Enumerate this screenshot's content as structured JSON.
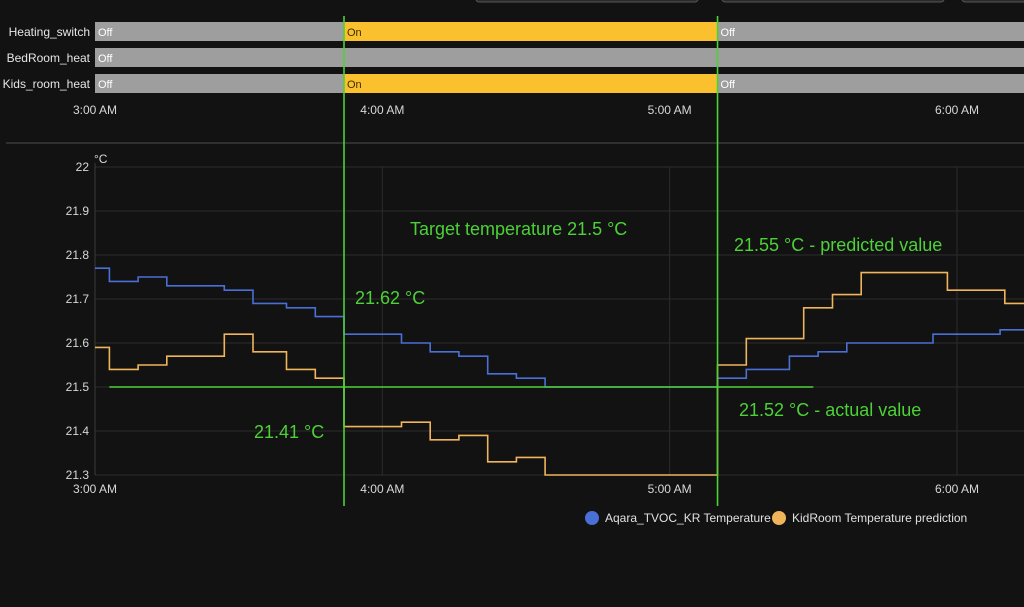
{
  "timeline": {
    "rows": [
      {
        "label": "Heating_switch",
        "segments": [
          {
            "from": "3:00",
            "to": "3:52",
            "state": "Off"
          },
          {
            "from": "3:52",
            "to": "5:10",
            "state": "On"
          },
          {
            "from": "5:10",
            "to": "6:14",
            "state": "Off"
          }
        ]
      },
      {
        "label": "BedRoom_heat",
        "segments": [
          {
            "from": "3:00",
            "to": "6:14",
            "state": "Off"
          }
        ]
      },
      {
        "label": "Kids_room_heat",
        "segments": [
          {
            "from": "3:00",
            "to": "3:52",
            "state": "Off"
          },
          {
            "from": "3:52",
            "to": "5:10",
            "state": "On"
          },
          {
            "from": "5:10",
            "to": "6:14",
            "state": "Off"
          }
        ]
      }
    ],
    "x_ticks": [
      "3:00 AM",
      "4:00 AM",
      "5:00 AM",
      "6:00 AM"
    ],
    "colors": {
      "On": "#fbc02d",
      "Off": "#9e9e9e",
      "on_text": "#3a3000",
      "off_text": "#ffffff"
    }
  },
  "chart_data": {
    "type": "line",
    "step": true,
    "y_unit": "°C",
    "ylim": [
      21.3,
      22.0
    ],
    "y_ticks": [
      "22",
      "21.9",
      "21.8",
      "21.7",
      "21.6",
      "21.5",
      "21.4",
      "21.3"
    ],
    "xlim": [
      "3:00",
      "6:14"
    ],
    "x_ticks": [
      "3:00 AM",
      "4:00 AM",
      "5:00 AM",
      "6:00 AM"
    ],
    "grid": true,
    "legend_position": "bottom",
    "series": [
      {
        "name": "Aqara_TVOC_KR Temperature",
        "color": "#4a6fd6",
        "points": [
          [
            "3:00",
            21.77
          ],
          [
            "3:03",
            21.74
          ],
          [
            "3:09",
            21.75
          ],
          [
            "3:15",
            21.73
          ],
          [
            "3:27",
            21.72
          ],
          [
            "3:33",
            21.69
          ],
          [
            "3:40",
            21.68
          ],
          [
            "3:46",
            21.66
          ],
          [
            "3:52",
            21.62
          ],
          [
            "4:04",
            21.6
          ],
          [
            "4:10",
            21.58
          ],
          [
            "4:16",
            21.57
          ],
          [
            "4:22",
            21.53
          ],
          [
            "4:28",
            21.52
          ],
          [
            "4:34",
            21.5
          ],
          [
            "5:10",
            21.5
          ],
          [
            "5:10",
            21.52
          ],
          [
            "5:16",
            21.54
          ],
          [
            "5:25",
            21.57
          ],
          [
            "5:31",
            21.58
          ],
          [
            "5:37",
            21.6
          ],
          [
            "5:55",
            21.62
          ],
          [
            "6:09",
            21.63
          ],
          [
            "6:14",
            21.63
          ]
        ]
      },
      {
        "name": "KidRoom Temperature prediction",
        "color": "#f0b55a",
        "points": [
          [
            "3:00",
            21.59
          ],
          [
            "3:03",
            21.54
          ],
          [
            "3:09",
            21.55
          ],
          [
            "3:15",
            21.57
          ],
          [
            "3:27",
            21.62
          ],
          [
            "3:33",
            21.58
          ],
          [
            "3:40",
            21.54
          ],
          [
            "3:46",
            21.52
          ],
          [
            "3:52",
            21.44
          ],
          [
            "3:52",
            21.41
          ],
          [
            "4:04",
            21.42
          ],
          [
            "4:10",
            21.38
          ],
          [
            "4:16",
            21.39
          ],
          [
            "4:22",
            21.33
          ],
          [
            "4:28",
            21.34
          ],
          [
            "4:34",
            21.3
          ],
          [
            "5:10",
            21.3
          ],
          [
            "5:10",
            21.55
          ],
          [
            "5:16",
            21.61
          ],
          [
            "5:28",
            21.68
          ],
          [
            "5:34",
            21.71
          ],
          [
            "5:40",
            21.76
          ],
          [
            "5:58",
            21.72
          ],
          [
            "6:10",
            21.69
          ],
          [
            "6:14",
            21.69
          ]
        ]
      }
    ],
    "annotations": [
      {
        "text": "Target temperature 21.5 °C"
      },
      {
        "text": "21.62 °C"
      },
      {
        "text": "21.41 °C"
      },
      {
        "text": "21.55 °C - predicted value"
      },
      {
        "text": "21.52 °C - actual value"
      }
    ],
    "reference_line": {
      "y": 21.5,
      "from": "3:03",
      "to": "5:30",
      "color": "#4cd137"
    },
    "markers": [
      {
        "x": "3:52",
        "color": "#4cd137"
      },
      {
        "x": "5:10",
        "color": "#4cd137"
      }
    ]
  }
}
